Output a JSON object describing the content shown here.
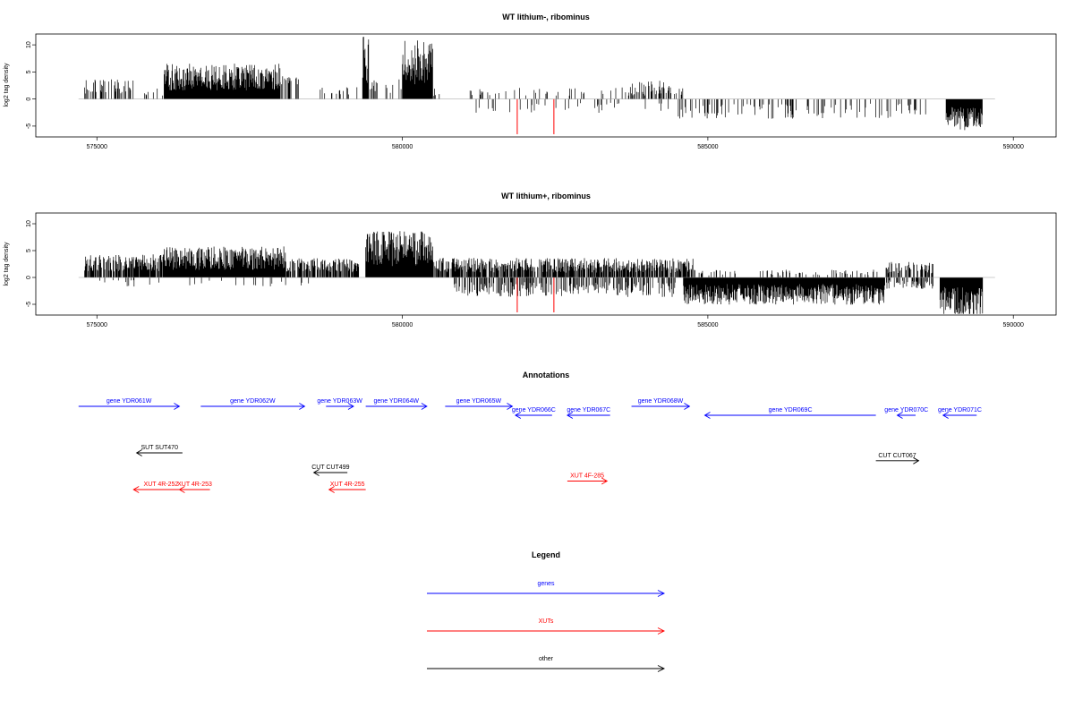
{
  "chart_data": [
    {
      "type": "bar",
      "title": "WT lithium-, ribominus",
      "xlabel": "",
      "ylabel": "log2 tag density",
      "xlim": [
        574000,
        590700
      ],
      "ylim": [
        -7,
        12
      ],
      "xticks": [
        575000,
        580000,
        585000,
        590000
      ],
      "yticks": [
        -5,
        0,
        5,
        10
      ],
      "colors": {
        "signal": "#000000",
        "highlight": "#ff0000"
      },
      "highlight_positions": [
        581880,
        582480
      ],
      "highlight_values": [
        -6.5,
        -6.5
      ],
      "segments": [
        {
          "start": 574800,
          "end": 575600,
          "sign": 1,
          "level": 2.5,
          "density": 0.35
        },
        {
          "start": 575700,
          "end": 576100,
          "sign": 1,
          "level": 1.5,
          "density": 0.15
        },
        {
          "start": 576100,
          "end": 578000,
          "sign": 1,
          "level": 4.5,
          "density": 1.0
        },
        {
          "start": 578000,
          "end": 578300,
          "sign": 1,
          "level": 3.0,
          "density": 0.5
        },
        {
          "start": 578400,
          "end": 579300,
          "sign": 1,
          "level": 1.5,
          "density": 0.12
        },
        {
          "start": 579350,
          "end": 579450,
          "sign": 1,
          "level": 8.0,
          "density": 1.0
        },
        {
          "start": 579450,
          "end": 580000,
          "sign": 1,
          "level": 2.5,
          "density": 0.3
        },
        {
          "start": 580000,
          "end": 580500,
          "sign": 1,
          "level": 7.5,
          "density": 1.0
        },
        {
          "start": 580500,
          "end": 584700,
          "sign": 1,
          "level": 1.5,
          "density": 0.1
        },
        {
          "start": 583700,
          "end": 584400,
          "sign": 1,
          "level": 2.5,
          "density": 0.4
        },
        {
          "start": 581200,
          "end": 584400,
          "sign": -1,
          "level": 1.8,
          "density": 0.1
        },
        {
          "start": 584500,
          "end": 588600,
          "sign": -1,
          "level": 2.5,
          "density": 0.18
        },
        {
          "start": 588900,
          "end": 589500,
          "sign": -1,
          "level": 4.0,
          "density": 1.0
        }
      ]
    },
    {
      "type": "bar",
      "title": "WT lithium+, ribominus",
      "xlabel": "",
      "ylabel": "log2 tag density",
      "xlim": [
        574000,
        590700
      ],
      "ylim": [
        -7,
        12
      ],
      "xticks": [
        575000,
        580000,
        585000,
        590000
      ],
      "yticks": [
        -5,
        0,
        5,
        10
      ],
      "colors": {
        "signal": "#000000",
        "highlight": "#ff0000"
      },
      "highlight_positions": [
        581880,
        582480
      ],
      "highlight_values": [
        -6.5,
        -6.5
      ],
      "segments": [
        {
          "start": 574800,
          "end": 576100,
          "sign": 1,
          "level": 3.0,
          "density": 0.8
        },
        {
          "start": 576100,
          "end": 578100,
          "sign": 1,
          "level": 4.0,
          "density": 1.0
        },
        {
          "start": 578100,
          "end": 579300,
          "sign": 1,
          "level": 2.5,
          "density": 0.6
        },
        {
          "start": 579400,
          "end": 580500,
          "sign": 1,
          "level": 6.0,
          "density": 1.0
        },
        {
          "start": 580500,
          "end": 584800,
          "sign": 1,
          "level": 2.5,
          "density": 0.7
        },
        {
          "start": 584800,
          "end": 587800,
          "sign": 1,
          "level": 1.0,
          "density": 0.15
        },
        {
          "start": 587900,
          "end": 588700,
          "sign": 1,
          "level": 2.0,
          "density": 0.5
        },
        {
          "start": 574800,
          "end": 578500,
          "sign": -1,
          "level": 1.2,
          "density": 0.08
        },
        {
          "start": 580800,
          "end": 584500,
          "sign": -1,
          "level": 2.5,
          "density": 0.45
        },
        {
          "start": 584600,
          "end": 587900,
          "sign": -1,
          "level": 3.5,
          "density": 1.0
        },
        {
          "start": 587900,
          "end": 588700,
          "sign": -1,
          "level": 1.5,
          "density": 0.4
        },
        {
          "start": 588800,
          "end": 589500,
          "sign": -1,
          "level": 5.0,
          "density": 1.0
        }
      ]
    }
  ],
  "annotations": {
    "title": "Annotations",
    "xlim": [
      574000,
      590700
    ],
    "colors": {
      "genes": "#0000ff",
      "XUTs": "#ff0000",
      "other": "#000000"
    },
    "features": [
      {
        "label": "gene YDR061W",
        "start": 574700,
        "end": 576350,
        "strand": "+",
        "kind": "genes",
        "row": 0
      },
      {
        "label": "gene YDR062W",
        "start": 576700,
        "end": 578400,
        "strand": "+",
        "kind": "genes",
        "row": 0
      },
      {
        "label": "gene YDR063W",
        "start": 578750,
        "end": 579200,
        "strand": "+",
        "kind": "genes",
        "row": 0
      },
      {
        "label": "gene YDR064W",
        "start": 579400,
        "end": 580400,
        "strand": "+",
        "kind": "genes",
        "row": 0
      },
      {
        "label": "gene YDR065W",
        "start": 580700,
        "end": 581800,
        "strand": "+",
        "kind": "genes",
        "row": 0
      },
      {
        "label": "gene YDR066C",
        "start": 581850,
        "end": 582450,
        "strand": "-",
        "kind": "genes",
        "row": 1
      },
      {
        "label": "gene YDR067C",
        "start": 582700,
        "end": 583400,
        "strand": "-",
        "kind": "genes",
        "row": 1
      },
      {
        "label": "gene YDR068W",
        "start": 583750,
        "end": 584700,
        "strand": "+",
        "kind": "genes",
        "row": 0
      },
      {
        "label": "gene YDR069C",
        "start": 584950,
        "end": 587750,
        "strand": "-",
        "kind": "genes",
        "row": 1
      },
      {
        "label": "gene YDR070C",
        "start": 588100,
        "end": 588400,
        "strand": "-",
        "kind": "genes",
        "row": 1
      },
      {
        "label": "gene YDR071C",
        "start": 588850,
        "end": 589400,
        "strand": "-",
        "kind": "genes",
        "row": 1
      },
      {
        "label": "SUT SUT470",
        "start": 575650,
        "end": 576400,
        "strand": "-",
        "kind": "other",
        "row": 2
      },
      {
        "label": "CUT CUT499",
        "start": 578550,
        "end": 579100,
        "strand": "-",
        "kind": "other",
        "row": 3
      },
      {
        "label": "CUT CUT067",
        "start": 587750,
        "end": 588450,
        "strand": "+",
        "kind": "other",
        "row": 2.4
      },
      {
        "label": "XUT 4R-252",
        "start": 575600,
        "end": 576500,
        "strand": "-",
        "kind": "XUTs",
        "row": 4
      },
      {
        "label": "XUT 4R-253",
        "start": 576350,
        "end": 576850,
        "strand": "-",
        "kind": "XUTs",
        "row": 4
      },
      {
        "label": "XUT 4R-255",
        "start": 578800,
        "end": 579400,
        "strand": "-",
        "kind": "XUTs",
        "row": 4
      },
      {
        "label": "XUT 4F-285",
        "start": 582700,
        "end": 583350,
        "strand": "+",
        "kind": "XUTs",
        "row": 3.5
      }
    ]
  },
  "legend": {
    "title": "Legend",
    "items": [
      {
        "label": "genes",
        "kind": "genes"
      },
      {
        "label": "XUTs",
        "kind": "XUTs"
      },
      {
        "label": "other",
        "kind": "other"
      }
    ]
  }
}
